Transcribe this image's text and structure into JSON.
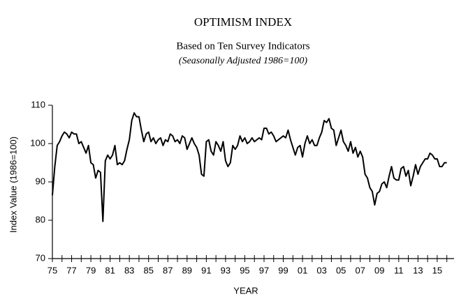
{
  "chart_data": {
    "type": "line",
    "title": "OPTIMISM INDEX",
    "subtitle": "Based on Ten Survey Indicators",
    "note": "(Seasonally Adjusted 1986=100)",
    "ylabel": "Index Value (1986=100)",
    "xlabel": "YEAR",
    "color": "#000000",
    "xlim": [
      1975,
      2016.75
    ],
    "ylim": [
      70,
      110
    ],
    "yticks": [
      70,
      80,
      90,
      100,
      110
    ],
    "xticks": [
      {
        "value": 1975,
        "label": "75"
      },
      {
        "value": 1977,
        "label": "77"
      },
      {
        "value": 1979,
        "label": "79"
      },
      {
        "value": 1981,
        "label": "81"
      },
      {
        "value": 1983,
        "label": "83"
      },
      {
        "value": 1985,
        "label": "85"
      },
      {
        "value": 1987,
        "label": "87"
      },
      {
        "value": 1989,
        "label": "89"
      },
      {
        "value": 1991,
        "label": "91"
      },
      {
        "value": 1993,
        "label": "93"
      },
      {
        "value": 1995,
        "label": "95"
      },
      {
        "value": 1997,
        "label": "97"
      },
      {
        "value": 1999,
        "label": "99"
      },
      {
        "value": 2001,
        "label": "01"
      },
      {
        "value": 2003,
        "label": "03"
      },
      {
        "value": 2005,
        "label": "05"
      },
      {
        "value": 2007,
        "label": "07"
      },
      {
        "value": 2009,
        "label": "09"
      },
      {
        "value": 2011,
        "label": "11"
      },
      {
        "value": 2013,
        "label": "13"
      },
      {
        "value": 2015,
        "label": "15"
      }
    ],
    "xminorticks": [
      1976,
      1978,
      1980,
      1982,
      1984,
      1986,
      1988,
      1990,
      1992,
      1994,
      1996,
      1998,
      2000,
      2002,
      2004,
      2006,
      2008,
      2010,
      2012,
      2014,
      2016
    ],
    "x": [
      1975,
      1975.25,
      1975.5,
      1975.75,
      1976,
      1976.25,
      1976.5,
      1976.75,
      1977,
      1977.25,
      1977.5,
      1977.75,
      1978,
      1978.25,
      1978.5,
      1978.75,
      1979,
      1979.25,
      1979.5,
      1979.75,
      1980,
      1980.25,
      1980.5,
      1980.75,
      1981,
      1981.25,
      1981.5,
      1981.75,
      1982,
      1982.25,
      1982.5,
      1982.75,
      1983,
      1983.25,
      1983.5,
      1983.75,
      1984,
      1984.25,
      1984.5,
      1984.75,
      1985,
      1985.25,
      1985.5,
      1985.75,
      1986,
      1986.25,
      1986.5,
      1986.75,
      1987,
      1987.25,
      1987.5,
      1987.75,
      1988,
      1988.25,
      1988.5,
      1988.75,
      1989,
      1989.25,
      1989.5,
      1989.75,
      1990,
      1990.25,
      1990.5,
      1990.75,
      1991,
      1991.25,
      1991.5,
      1991.75,
      1992,
      1992.25,
      1992.5,
      1992.75,
      1993,
      1993.25,
      1993.5,
      1993.75,
      1994,
      1994.25,
      1994.5,
      1994.75,
      1995,
      1995.25,
      1995.5,
      1995.75,
      1996,
      1996.25,
      1996.5,
      1996.75,
      1997,
      1997.25,
      1997.5,
      1997.75,
      1998,
      1998.25,
      1998.5,
      1998.75,
      1999,
      1999.25,
      1999.5,
      1999.75,
      2000,
      2000.25,
      2000.5,
      2000.75,
      2001,
      2001.25,
      2001.5,
      2001.75,
      2002,
      2002.25,
      2002.5,
      2002.75,
      2003,
      2003.25,
      2003.5,
      2003.75,
      2004,
      2004.25,
      2004.5,
      2004.75,
      2005,
      2005.25,
      2005.5,
      2005.75,
      2006,
      2006.25,
      2006.5,
      2006.75,
      2007,
      2007.25,
      2007.5,
      2007.75,
      2008,
      2008.25,
      2008.5,
      2008.75,
      2009,
      2009.25,
      2009.5,
      2009.75,
      2010,
      2010.25,
      2010.5,
      2010.75,
      2011,
      2011.25,
      2011.5,
      2011.75,
      2012,
      2012.25,
      2012.5,
      2012.75,
      2013,
      2013.25,
      2013.5,
      2013.75,
      2014,
      2014.25,
      2014.5,
      2014.75,
      2015,
      2015.25,
      2015.5,
      2015.75,
      2016
    ],
    "values": [
      86.5,
      94,
      99.5,
      100.5,
      102,
      103,
      102.5,
      101.5,
      103,
      102.5,
      102.5,
      100,
      100.5,
      99,
      97.5,
      99.5,
      95,
      94.5,
      91,
      93,
      92.5,
      79.7,
      95.5,
      97,
      96,
      97,
      99.5,
      94.5,
      95,
      94.5,
      95.5,
      98.5,
      101,
      106,
      108,
      107,
      107,
      103.5,
      100.5,
      102.5,
      103,
      100.5,
      101.5,
      100,
      101,
      101.5,
      99.5,
      101,
      100.5,
      102.5,
      102,
      100.5,
      101,
      100,
      102,
      101.5,
      98.5,
      100,
      101.5,
      100,
      99,
      97,
      92,
      91.5,
      100.5,
      101,
      98,
      97,
      100.5,
      99.5,
      98,
      100.5,
      95.5,
      94,
      95,
      99.5,
      98.5,
      99.5,
      102,
      100.5,
      101.5,
      100,
      100.5,
      101.5,
      100.5,
      101,
      101.5,
      101,
      104,
      104,
      102.5,
      103,
      102,
      100.5,
      101,
      101.5,
      102,
      101.5,
      103.5,
      101,
      99,
      97,
      99,
      99.5,
      96.5,
      100,
      102,
      100,
      101,
      99.5,
      99.5,
      101.5,
      103,
      106,
      105.5,
      106.5,
      104,
      103.5,
      99.5,
      101.5,
      103.5,
      100.5,
      99.5,
      98,
      100.5,
      97.5,
      99,
      96.5,
      98,
      96.5,
      92,
      91,
      88.5,
      87.5,
      84,
      87,
      87.5,
      89.5,
      90,
      88.5,
      91.5,
      94,
      91,
      90.5,
      90.5,
      93.5,
      94,
      91.5,
      93,
      89,
      91.5,
      94.5,
      92,
      94,
      95,
      96,
      96,
      97.5,
      97,
      96,
      96,
      94,
      94,
      95,
      95
    ]
  }
}
